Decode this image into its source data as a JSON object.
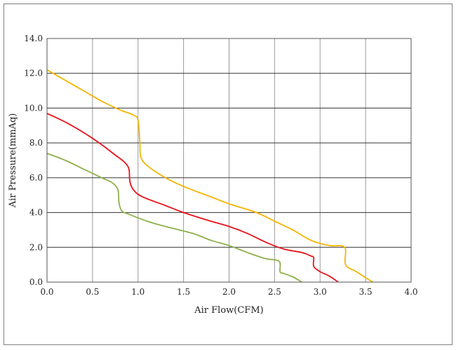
{
  "chart_data": {
    "type": "line",
    "xlabel": "Air Flow(CFM)",
    "ylabel": "Air Pressure(mmAq)",
    "xlim": [
      0,
      4
    ],
    "ylim": [
      0,
      14
    ],
    "x_ticks": [
      "0.0",
      "0.5",
      "1.0",
      "1.5",
      "2.0",
      "2.5",
      "3.0",
      "3.5",
      "4.0"
    ],
    "y_ticks": [
      "0.0",
      "2.0",
      "4.0",
      "6.0",
      "8.0",
      "10.0",
      "12.0",
      "14.0"
    ],
    "grid": true,
    "legend": "none",
    "series": [
      {
        "color": "#f5b400",
        "points": [
          [
            0.0,
            12.2
          ],
          [
            0.2,
            11.6
          ],
          [
            0.4,
            11.0
          ],
          [
            0.6,
            10.4
          ],
          [
            0.8,
            9.9
          ],
          [
            0.95,
            9.6
          ],
          [
            1.0,
            9.3
          ],
          [
            1.02,
            8.0
          ],
          [
            1.03,
            7.2
          ],
          [
            1.1,
            6.7
          ],
          [
            1.3,
            6.0
          ],
          [
            1.5,
            5.5
          ],
          [
            1.8,
            4.9
          ],
          [
            2.0,
            4.5
          ],
          [
            2.3,
            4.0
          ],
          [
            2.5,
            3.5
          ],
          [
            2.7,
            3.0
          ],
          [
            2.9,
            2.4
          ],
          [
            3.1,
            2.1
          ],
          [
            3.27,
            2.0
          ],
          [
            3.28,
            1.0
          ],
          [
            3.4,
            0.6
          ],
          [
            3.5,
            0.25
          ],
          [
            3.58,
            0.0
          ]
        ]
      },
      {
        "color": "#e8131b",
        "points": [
          [
            0.0,
            9.7
          ],
          [
            0.2,
            9.2
          ],
          [
            0.4,
            8.6
          ],
          [
            0.6,
            7.9
          ],
          [
            0.75,
            7.3
          ],
          [
            0.85,
            6.9
          ],
          [
            0.9,
            6.5
          ],
          [
            0.91,
            5.8
          ],
          [
            0.95,
            5.3
          ],
          [
            1.05,
            4.9
          ],
          [
            1.3,
            4.4
          ],
          [
            1.5,
            4.0
          ],
          [
            1.8,
            3.5
          ],
          [
            2.0,
            3.2
          ],
          [
            2.2,
            2.8
          ],
          [
            2.4,
            2.3
          ],
          [
            2.6,
            1.9
          ],
          [
            2.8,
            1.7
          ],
          [
            2.9,
            1.5
          ],
          [
            2.93,
            1.4
          ],
          [
            2.93,
            0.9
          ],
          [
            3.0,
            0.6
          ],
          [
            3.1,
            0.35
          ],
          [
            3.2,
            0.0
          ]
        ]
      },
      {
        "color": "#8db04c",
        "points": [
          [
            0.0,
            7.4
          ],
          [
            0.2,
            7.0
          ],
          [
            0.4,
            6.5
          ],
          [
            0.6,
            6.0
          ],
          [
            0.72,
            5.7
          ],
          [
            0.78,
            5.3
          ],
          [
            0.79,
            4.6
          ],
          [
            0.82,
            4.1
          ],
          [
            0.9,
            3.9
          ],
          [
            1.1,
            3.5
          ],
          [
            1.3,
            3.2
          ],
          [
            1.6,
            2.8
          ],
          [
            1.8,
            2.4
          ],
          [
            2.0,
            2.1
          ],
          [
            2.2,
            1.7
          ],
          [
            2.4,
            1.35
          ],
          [
            2.55,
            1.2
          ],
          [
            2.56,
            0.6
          ],
          [
            2.6,
            0.5
          ],
          [
            2.7,
            0.3
          ],
          [
            2.8,
            0.0
          ]
        ]
      }
    ]
  }
}
